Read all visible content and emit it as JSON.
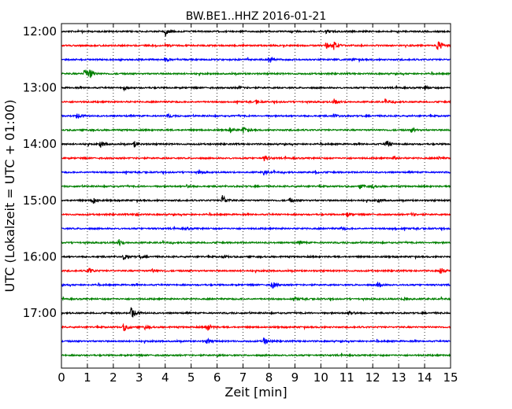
{
  "chart_data": {
    "type": "line",
    "title": "BW.BE1..HHZ 2016-01-21",
    "xlabel": "Zeit  [min]",
    "ylabel": "UTC (Lokalzeit = UTC + 01:00)",
    "xlim": [
      0,
      15
    ],
    "x_ticks": [
      "0",
      "1",
      "2",
      "3",
      "4",
      "5",
      "6",
      "7",
      "8",
      "9",
      "10",
      "11",
      "12",
      "13",
      "14",
      "15"
    ],
    "y_ticks": [
      "12:00",
      "13:00",
      "14:00",
      "15:00",
      "16:00",
      "17:00"
    ],
    "grid": true,
    "trace_colors": [
      "#000000",
      "#ff0000",
      "#0000ff",
      "#008000"
    ],
    "series": [
      {
        "label": "12:00",
        "events": [
          [
            4.0,
            0.45
          ],
          [
            10.2,
            0.2
          ]
        ]
      },
      {
        "label": "12:15",
        "events": [
          [
            4.0,
            0.2
          ],
          [
            10.2,
            0.4
          ],
          [
            10.5,
            0.5
          ],
          [
            14.5,
            0.9
          ]
        ]
      },
      {
        "label": "12:30",
        "events": [
          [
            4.0,
            0.2
          ],
          [
            8.0,
            0.4
          ],
          [
            11.2,
            0.15
          ]
        ]
      },
      {
        "label": "12:45",
        "events": [
          [
            0.9,
            0.9
          ],
          [
            1.1,
            0.4
          ]
        ]
      },
      {
        "label": "13:00",
        "events": [
          [
            2.4,
            0.3
          ],
          [
            6.8,
            0.2
          ],
          [
            14.0,
            0.3
          ]
        ]
      },
      {
        "label": "13:15",
        "events": [
          [
            7.5,
            0.2
          ],
          [
            10.5,
            0.35
          ],
          [
            12.5,
            0.2
          ]
        ]
      },
      {
        "label": "13:30",
        "events": [
          [
            0.6,
            0.45
          ],
          [
            4.1,
            0.2
          ],
          [
            10.5,
            0.3
          ]
        ]
      },
      {
        "label": "13:45",
        "events": [
          [
            7.0,
            0.4
          ],
          [
            13.5,
            0.3
          ],
          [
            6.5,
            0.25
          ]
        ]
      },
      {
        "label": "14:00",
        "events": [
          [
            1.5,
            0.45
          ],
          [
            2.8,
            0.4
          ],
          [
            12.5,
            0.55
          ]
        ]
      },
      {
        "label": "14:15",
        "events": [
          [
            7.8,
            0.3
          ],
          [
            12.8,
            0.2
          ],
          [
            14.5,
            0.15
          ]
        ]
      },
      {
        "label": "14:30",
        "events": [
          [
            5.3,
            0.2
          ],
          [
            7.8,
            0.3
          ],
          [
            9.8,
            0.15
          ]
        ]
      },
      {
        "label": "14:45",
        "events": [
          [
            4.8,
            0.2
          ],
          [
            11.5,
            0.3
          ],
          [
            12.0,
            0.2
          ]
        ]
      },
      {
        "label": "15:00",
        "events": [
          [
            1.2,
            0.45
          ],
          [
            6.2,
            0.75
          ],
          [
            8.8,
            0.3
          ],
          [
            12.2,
            0.2
          ]
        ]
      },
      {
        "label": "15:15",
        "events": [
          [
            2.8,
            0.2
          ],
          [
            11.0,
            0.35
          ],
          [
            13.5,
            0.2
          ]
        ]
      },
      {
        "label": "15:30",
        "events": [
          [
            4.8,
            0.15
          ],
          [
            10.8,
            0.2
          ],
          [
            12.8,
            0.2
          ]
        ]
      },
      {
        "label": "15:45",
        "events": [
          [
            2.2,
            0.45
          ],
          [
            9.2,
            0.2
          ]
        ]
      },
      {
        "label": "16:00",
        "events": [
          [
            2.4,
            0.4
          ],
          [
            6.2,
            0.2
          ],
          [
            3.0,
            0.2
          ]
        ]
      },
      {
        "label": "16:15",
        "events": [
          [
            1.0,
            0.55
          ],
          [
            3.5,
            0.25
          ],
          [
            14.6,
            0.45
          ]
        ]
      },
      {
        "label": "16:30",
        "events": [
          [
            8.1,
            0.6
          ],
          [
            12.2,
            0.35
          ]
        ]
      },
      {
        "label": "16:45",
        "events": [
          [
            9.0,
            0.15
          ],
          [
            13.2,
            0.4
          ]
        ]
      },
      {
        "label": "17:00",
        "events": [
          [
            2.7,
            1.0
          ],
          [
            11.1,
            0.35
          ]
        ]
      },
      {
        "label": "17:15",
        "events": [
          [
            2.4,
            0.55
          ],
          [
            5.6,
            0.55
          ],
          [
            3.2,
            0.25
          ]
        ]
      },
      {
        "label": "17:30",
        "events": [
          [
            5.6,
            0.4
          ],
          [
            7.8,
            0.5
          ]
        ]
      },
      {
        "label": "17:45",
        "events": [
          [
            6.0,
            0.1
          ]
        ]
      }
    ]
  }
}
